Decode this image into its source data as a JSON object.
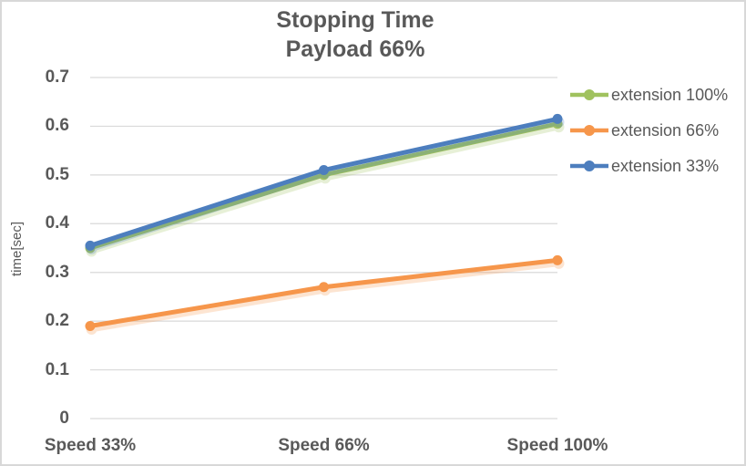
{
  "chart_data": {
    "type": "line",
    "title": {
      "line1": "Stopping Time",
      "line2": "Payload 66%"
    },
    "ylabel": "time[sec]",
    "categories": [
      "Speed 33%",
      "Speed 66%",
      "Speed 100%"
    ],
    "series": [
      {
        "name": "extension 100%",
        "color": "#A0C25E",
        "values": [
          0.35,
          0.5,
          0.605
        ]
      },
      {
        "name": "extension 66%",
        "color": "#F6964B",
        "values": [
          0.19,
          0.27,
          0.325
        ]
      },
      {
        "name": "extension 33%",
        "color": "#4D7EBE",
        "values": [
          0.355,
          0.51,
          0.615
        ]
      }
    ],
    "ylim": [
      0,
      0.7
    ],
    "ytick_step": 0.1,
    "yticks": [
      "0",
      "0.1",
      "0.2",
      "0.3",
      "0.4",
      "0.5",
      "0.6",
      "0.7"
    ],
    "grid": true,
    "legend_position": "right",
    "text_color": "#595959",
    "gridline_color": "#D9D9D9"
  }
}
